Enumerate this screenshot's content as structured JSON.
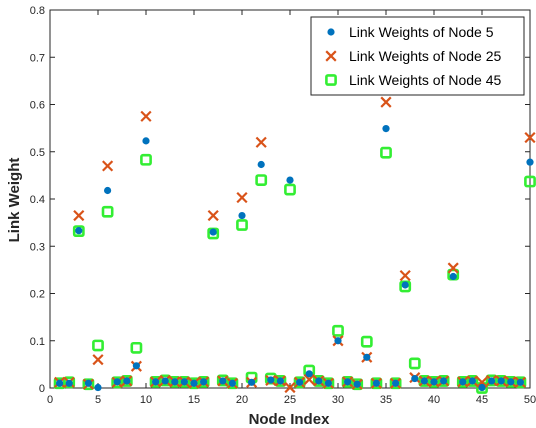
{
  "chart_data": {
    "type": "scatter",
    "xlabel": "Node Index",
    "ylabel": "Link Weight",
    "xlim": [
      0,
      50
    ],
    "ylim": [
      0,
      0.8
    ],
    "xticks": [
      0,
      5,
      10,
      15,
      20,
      25,
      30,
      35,
      40,
      45,
      50
    ],
    "yticks": [
      0,
      0.1,
      0.2,
      0.3,
      0.4,
      0.5,
      0.6,
      0.7,
      0.8
    ],
    "xtick_labels": [
      "0",
      "5",
      "10",
      "15",
      "20",
      "25",
      "30",
      "35",
      "40",
      "45",
      "50"
    ],
    "ytick_labels": [
      "0",
      "0.1",
      "0.2",
      "0.3",
      "0.4",
      "0.5",
      "0.6",
      "0.7",
      "0.8"
    ],
    "grid": false,
    "legend_position": "top-right",
    "series": [
      {
        "name": "Link Weights of Node 5",
        "marker": "dot",
        "color": "#0072bd",
        "x": [
          1,
          2,
          3,
          4,
          5,
          6,
          7,
          8,
          9,
          10,
          11,
          12,
          13,
          14,
          15,
          16,
          17,
          18,
          19,
          20,
          21,
          22,
          23,
          24,
          25,
          26,
          27,
          28,
          29,
          30,
          31,
          32,
          33,
          34,
          35,
          36,
          37,
          38,
          39,
          40,
          41,
          42,
          43,
          44,
          45,
          46,
          47,
          48,
          49,
          50
        ],
        "y": [
          0.01,
          0.01,
          0.333,
          0.01,
          0.001,
          0.418,
          0.013,
          0.015,
          0.047,
          0.523,
          0.013,
          0.015,
          0.013,
          0.013,
          0.01,
          0.013,
          0.33,
          0.015,
          0.01,
          0.365,
          0.012,
          0.473,
          0.017,
          0.015,
          0.44,
          0.012,
          0.03,
          0.015,
          0.01,
          0.1,
          0.013,
          0.008,
          0.065,
          0.01,
          0.549,
          0.01,
          0.218,
          0.02,
          0.015,
          0.013,
          0.015,
          0.236,
          0.013,
          0.015,
          0.001,
          0.015,
          0.015,
          0.013,
          0.012,
          0.478
        ]
      },
      {
        "name": "Link Weights of Node 25",
        "marker": "x",
        "color": "#d95319",
        "x": [
          1,
          2,
          3,
          4,
          5,
          6,
          7,
          8,
          9,
          10,
          11,
          12,
          13,
          14,
          15,
          16,
          17,
          18,
          19,
          20,
          21,
          22,
          23,
          24,
          25,
          26,
          27,
          28,
          29,
          30,
          31,
          32,
          33,
          34,
          35,
          36,
          37,
          38,
          39,
          40,
          41,
          42,
          43,
          44,
          45,
          46,
          47,
          48,
          49,
          50
        ],
        "y": [
          0.012,
          0.012,
          0.365,
          0.008,
          0.06,
          0.47,
          0.012,
          0.015,
          0.046,
          0.575,
          0.013,
          0.016,
          0.013,
          0.013,
          0.01,
          0.013,
          0.365,
          0.015,
          0.01,
          0.403,
          0.012,
          0.52,
          0.016,
          0.015,
          0.001,
          0.012,
          0.018,
          0.015,
          0.01,
          0.1,
          0.013,
          0.008,
          0.065,
          0.01,
          0.605,
          0.01,
          0.238,
          0.022,
          0.015,
          0.013,
          0.015,
          0.254,
          0.013,
          0.015,
          0.012,
          0.016,
          0.015,
          0.013,
          0.012,
          0.53
        ]
      },
      {
        "name": "Link Weights of Node 45",
        "marker": "square",
        "color": "#33ee33",
        "x": [
          1,
          2,
          3,
          4,
          5,
          6,
          7,
          8,
          9,
          10,
          11,
          12,
          13,
          14,
          15,
          16,
          17,
          18,
          19,
          20,
          21,
          22,
          23,
          24,
          25,
          26,
          27,
          28,
          29,
          30,
          31,
          32,
          33,
          34,
          35,
          36,
          37,
          38,
          39,
          40,
          41,
          42,
          43,
          44,
          45,
          46,
          47,
          48,
          49,
          50
        ],
        "y": [
          0.01,
          0.012,
          0.332,
          0.008,
          0.09,
          0.373,
          0.012,
          0.015,
          0.085,
          0.483,
          0.013,
          0.016,
          0.013,
          0.013,
          0.01,
          0.013,
          0.327,
          0.016,
          0.01,
          0.345,
          0.022,
          0.44,
          0.02,
          0.015,
          0.42,
          0.012,
          0.037,
          0.015,
          0.01,
          0.121,
          0.013,
          0.008,
          0.098,
          0.01,
          0.498,
          0.01,
          0.215,
          0.052,
          0.015,
          0.013,
          0.015,
          0.24,
          0.013,
          0.015,
          0.0,
          0.016,
          0.015,
          0.013,
          0.012,
          0.437
        ]
      }
    ]
  }
}
